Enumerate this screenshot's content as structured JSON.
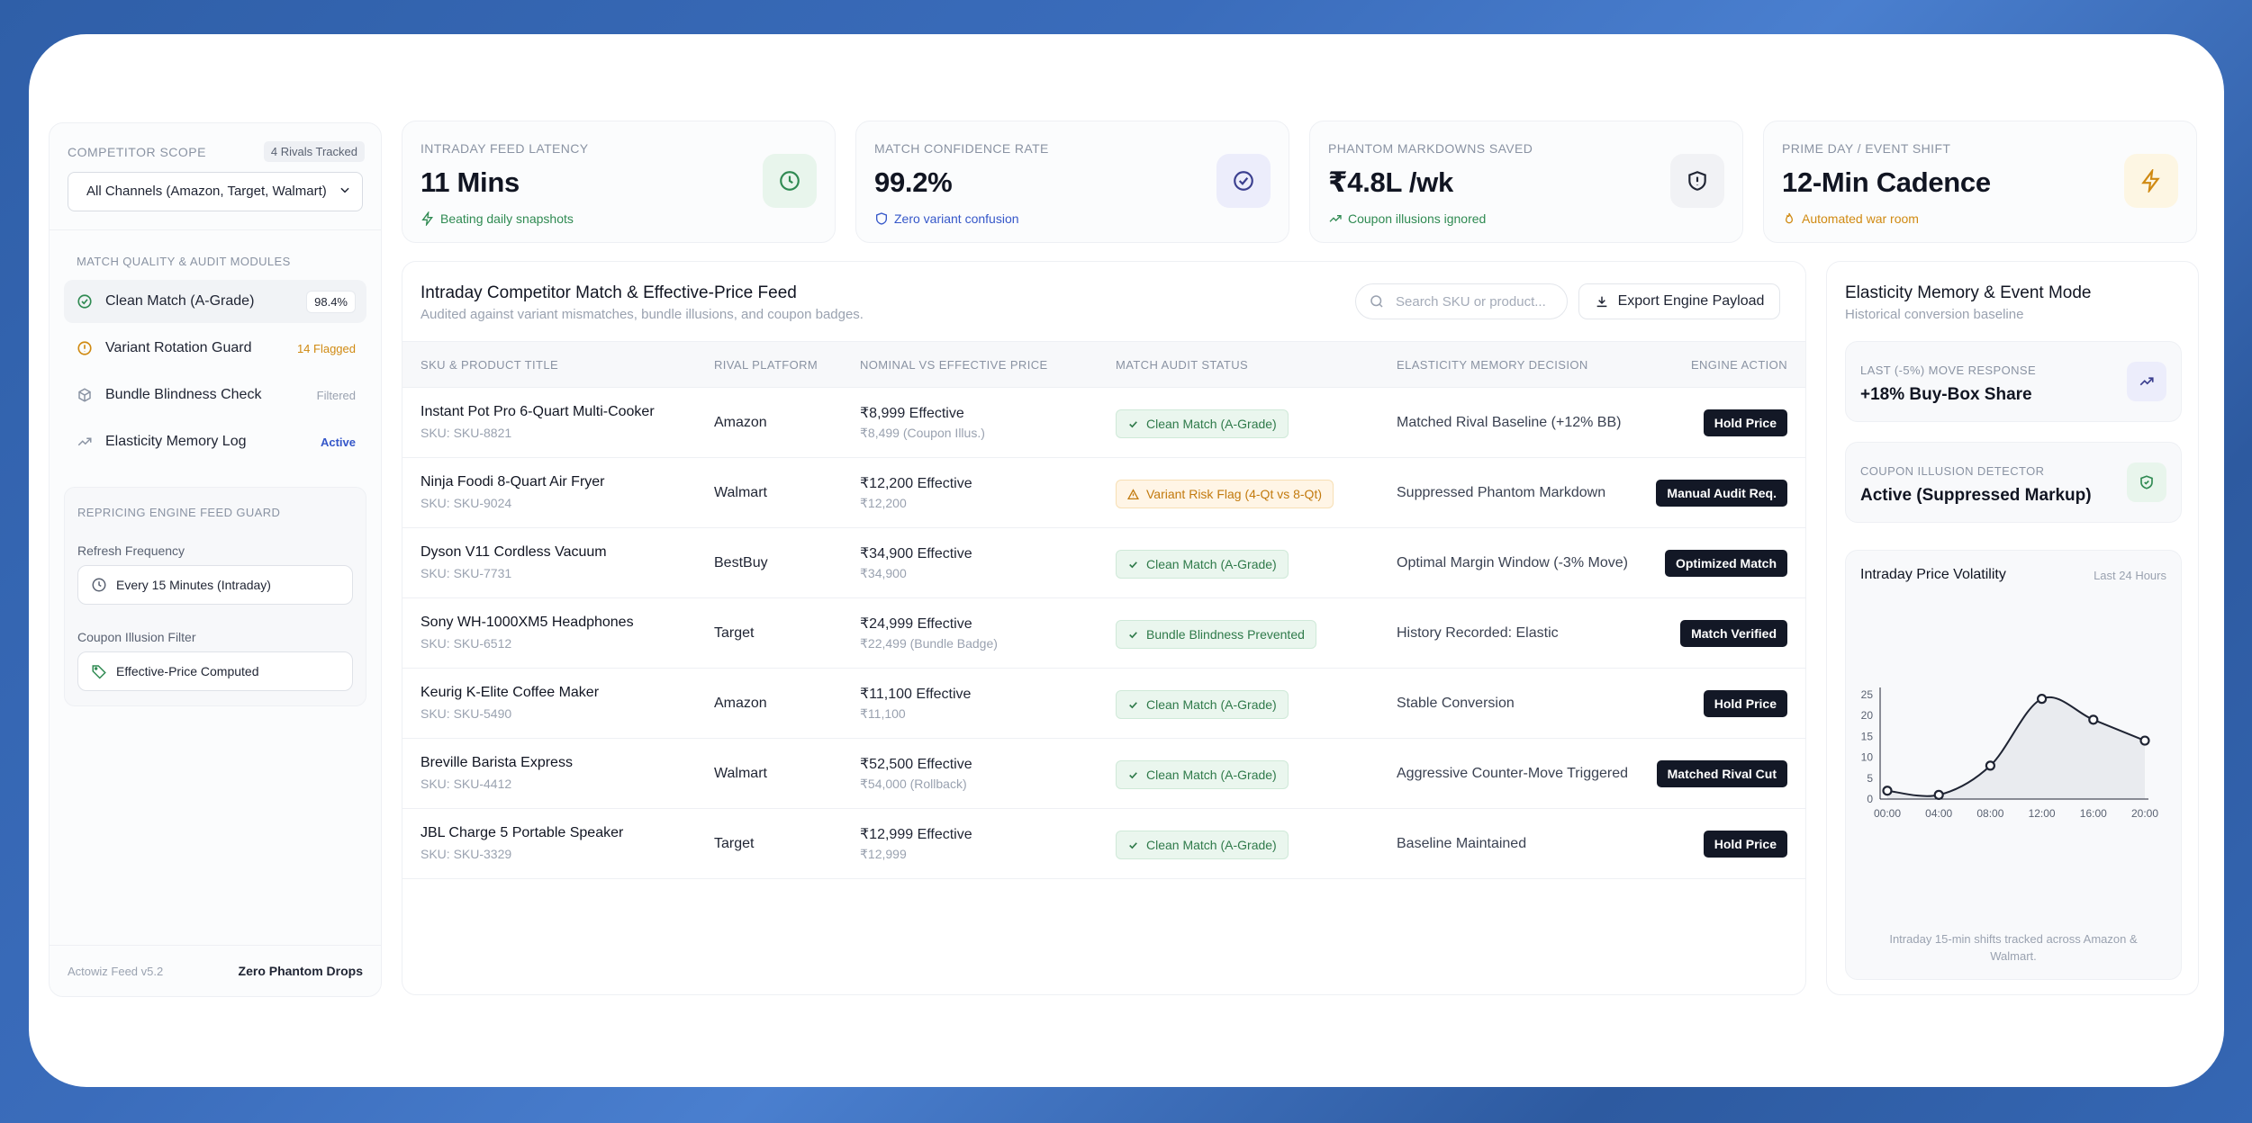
{
  "sidebar": {
    "scope_label": "COMPETITOR SCOPE",
    "rivals_badge": "4 Rivals Tracked",
    "channel_select": "All Channels (Amazon, Target, Walmart)",
    "modules_label": "MATCH QUALITY & AUDIT MODULES",
    "items": [
      {
        "label": "Clean Match (A-Grade)",
        "badge": "98.4%",
        "icon": "check-circle-icon",
        "active": true
      },
      {
        "label": "Variant Rotation Guard",
        "badge": "14 Flagged",
        "icon": "alert-circle-icon"
      },
      {
        "label": "Bundle Blindness Check",
        "badge": "Filtered",
        "icon": "package-icon"
      },
      {
        "label": "Elasticity Memory Log",
        "badge": "Active",
        "icon": "trending-up-icon"
      }
    ],
    "guard": {
      "title": "REPRICING ENGINE FEED GUARD",
      "refresh_label": "Refresh Frequency",
      "refresh_value": "Every 15 Minutes (Intraday)",
      "coupon_label": "Coupon Illusion Filter",
      "coupon_value": "Effective-Price Computed"
    },
    "footer_left": "Actowiz Feed v5.2",
    "footer_right": "Zero Phantom Drops"
  },
  "kpis": [
    {
      "label": "INTRADAY FEED LATENCY",
      "value": "11 Mins",
      "sub": "Beating daily snapshots",
      "sub_color": "#2f8a52",
      "icon": "clock-icon",
      "icon_bg": "#e8f5ec",
      "icon_color": "#2f8a52"
    },
    {
      "label": "MATCH CONFIDENCE RATE",
      "value": "99.2%",
      "sub": "Zero variant confusion",
      "sub_color": "#3557c9",
      "icon": "check-circle-icon",
      "icon_bg": "#ecedfb",
      "icon_color": "#3b3f8f"
    },
    {
      "label": "PHANTOM MARKDOWNS SAVED",
      "value": "₹4.8L /wk",
      "sub": "Coupon illusions ignored",
      "sub_color": "#2f8a52",
      "icon": "shield-alert-icon",
      "icon_bg": "#f1f2f5",
      "icon_color": "#1f2433"
    },
    {
      "label": "PRIME DAY / EVENT SHIFT",
      "value": "12-Min Cadence",
      "sub": "Automated war room",
      "sub_color": "#d08a12",
      "icon": "zap-icon",
      "icon_bg": "#fdf6e3",
      "icon_color": "#d08a12"
    }
  ],
  "main": {
    "title": "Intraday Competitor Match & Effective-Price Feed",
    "subtitle": "Audited against variant mismatches, bundle illusions, and coupon badges.",
    "search_placeholder": "Search SKU or product...",
    "export_label": "Export Engine Payload",
    "columns": [
      "SKU & PRODUCT TITLE",
      "RIVAL PLATFORM",
      "NOMINAL VS EFFECTIVE PRICE",
      "MATCH AUDIT STATUS",
      "ELASTICITY MEMORY DECISION",
      "ENGINE ACTION"
    ],
    "rows": [
      {
        "title": "Instant Pot Pro 6-Quart Multi-Cooker",
        "sku": "SKU: SKU-8821",
        "platform": "Amazon",
        "effective": "₹8,999 Effective",
        "nominal": "₹8,499 (Coupon Illus.)",
        "status": "Clean Match (A-Grade)",
        "status_type": "green",
        "decision": "Matched Rival Baseline (+12% BB)",
        "action": "Hold Price"
      },
      {
        "title": "Ninja Foodi 8-Quart Air Fryer",
        "sku": "SKU: SKU-9024",
        "platform": "Walmart",
        "effective": "₹12,200 Effective",
        "nominal": "₹12,200",
        "status": "Variant Risk Flag (4-Qt vs 8-Qt)",
        "status_type": "orange",
        "decision": "Suppressed Phantom Markdown",
        "action": "Manual Audit Req."
      },
      {
        "title": "Dyson V11 Cordless Vacuum",
        "sku": "SKU: SKU-7731",
        "platform": "BestBuy",
        "effective": "₹34,900 Effective",
        "nominal": "₹34,900",
        "status": "Clean Match (A-Grade)",
        "status_type": "green",
        "decision": "Optimal Margin Window (-3% Move)",
        "action": "Optimized Match"
      },
      {
        "title": "Sony WH-1000XM5 Headphones",
        "sku": "SKU: SKU-6512",
        "platform": "Target",
        "effective": "₹24,999 Effective",
        "nominal": "₹22,499 (Bundle Badge)",
        "status": "Bundle Blindness Prevented",
        "status_type": "green",
        "decision": "History Recorded: Elastic",
        "action": "Match Verified"
      },
      {
        "title": "Keurig K-Elite Coffee Maker",
        "sku": "SKU: SKU-5490",
        "platform": "Amazon",
        "effective": "₹11,100 Effective",
        "nominal": "₹11,100",
        "status": "Clean Match (A-Grade)",
        "status_type": "green",
        "decision": "Stable Conversion",
        "action": "Hold Price"
      },
      {
        "title": "Breville Barista Express",
        "sku": "SKU: SKU-4412",
        "platform": "Walmart",
        "effective": "₹52,500 Effective",
        "nominal": "₹54,000 (Rollback)",
        "status": "Clean Match (A-Grade)",
        "status_type": "green",
        "decision": "Aggressive Counter-Move Triggered",
        "action": "Matched Rival Cut"
      },
      {
        "title": "JBL Charge 5 Portable Speaker",
        "sku": "SKU: SKU-3329",
        "platform": "Target",
        "effective": "₹12,999 Effective",
        "nominal": "₹12,999",
        "status": "Clean Match (A-Grade)",
        "status_type": "green",
        "decision": "Baseline Maintained",
        "action": "Hold Price"
      }
    ]
  },
  "right": {
    "title": "Elasticity Memory & Event Mode",
    "subtitle": "Historical conversion baseline",
    "card1_label": "LAST (-5%) MOVE RESPONSE",
    "card1_value": "+18% Buy-Box Share",
    "card2_label": "COUPON ILLUSION DETECTOR",
    "card2_value": "Active (Suppressed Markup)",
    "chart_title": "Intraday Price Volatility",
    "chart_range": "Last 24 Hours",
    "chart_footer": "Intraday 15-min shifts tracked across Amazon & Walmart."
  },
  "chart_data": {
    "type": "area",
    "x": [
      "00:00",
      "04:00",
      "08:00",
      "12:00",
      "16:00",
      "20:00"
    ],
    "values": [
      2,
      1,
      8,
      24,
      19,
      14
    ],
    "yticks": [
      0,
      5,
      10,
      15,
      20,
      25
    ],
    "ylim": [
      0,
      25
    ],
    "grid": false
  }
}
